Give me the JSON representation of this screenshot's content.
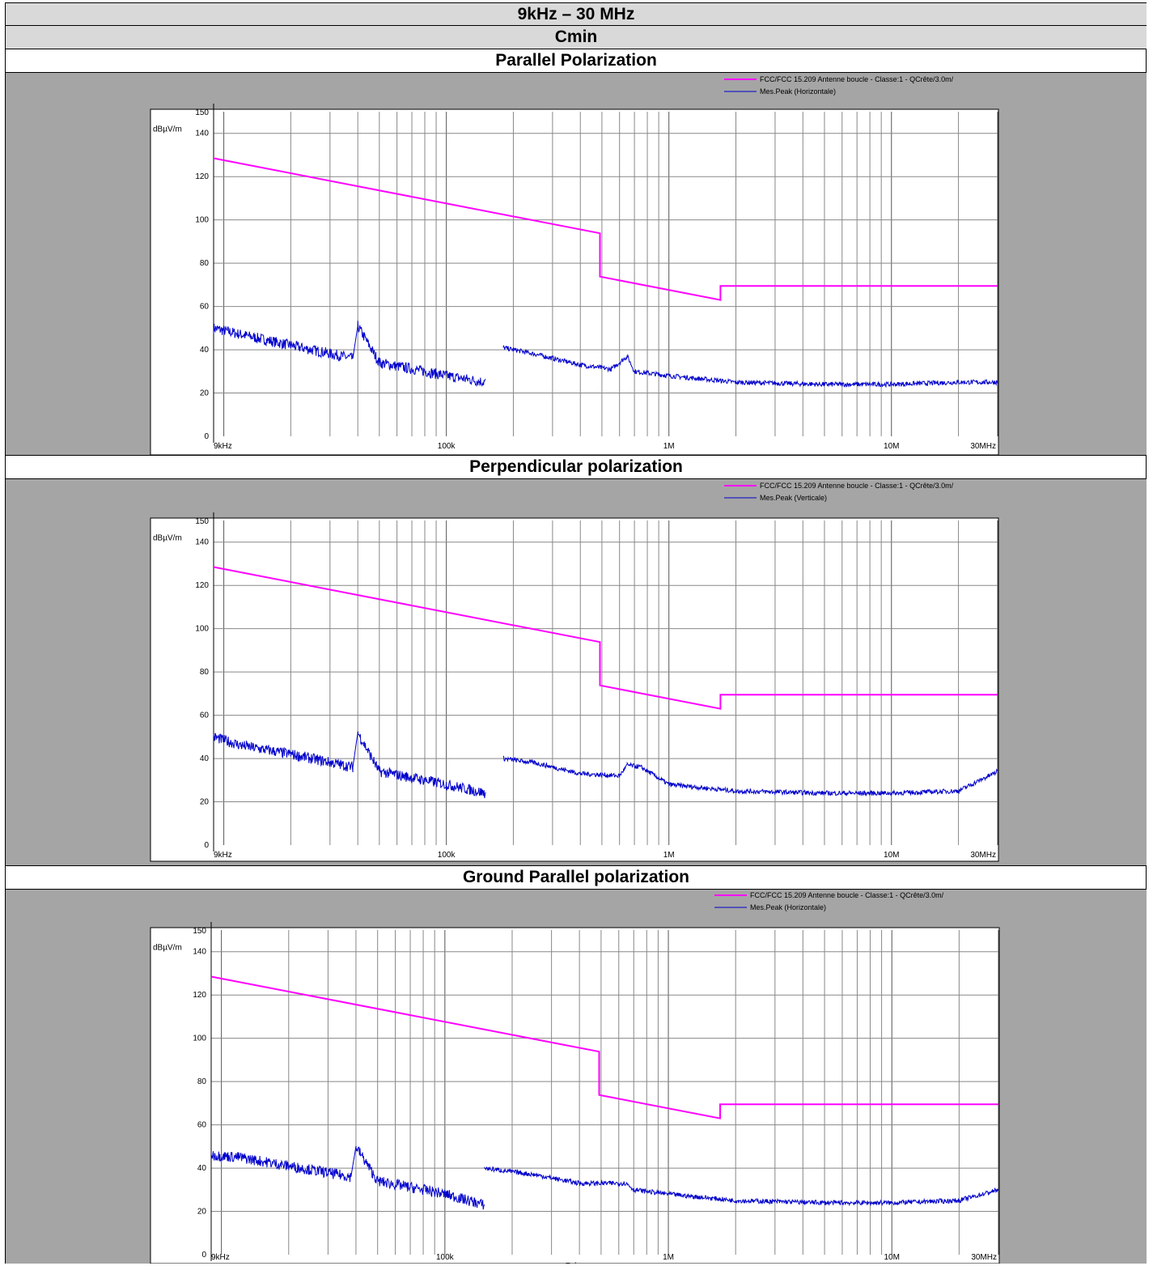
{
  "header": {
    "band": "9kHz – 30 MHz",
    "config": "Cmin"
  },
  "colors": {
    "limit": "#ff00ff",
    "measure": "#0000cc",
    "panel_bg": "#a5a5a5",
    "plot_bg": "#ffffff"
  },
  "axes": {
    "y_unit": "dBµV/m",
    "y_ticks": [
      "0",
      "20",
      "40",
      "60",
      "80",
      "100",
      "120",
      "140",
      "150"
    ],
    "x_ticks": [
      "9kHz",
      "100k",
      "1M",
      "10M",
      "30MHz"
    ],
    "xlabel": "Fréquence"
  },
  "chart_data": [
    {
      "type": "line",
      "title": "Parallel Polarization",
      "x_scale": "log",
      "xlim": [
        9000,
        30000000
      ],
      "ylim": [
        0,
        150
      ],
      "series": [
        {
          "name": "FCC/FCC  15.209 Antenne boucle - Classe:1 - QCrête/3.0m/",
          "points": [
            [
              9000,
              128.5
            ],
            [
              490000,
              93.8
            ],
            [
              490000,
              73.8
            ],
            [
              1705000,
              63.0
            ],
            [
              1705000,
              69.5
            ],
            [
              30000000,
              69.5
            ]
          ]
        },
        {
          "name": "Mes.Peak (Horizontale)",
          "points": [
            [
              9000,
              50
            ],
            [
              12000,
              47
            ],
            [
              20000,
              42
            ],
            [
              38000,
              36
            ],
            [
              40000,
              51
            ],
            [
              50000,
              34
            ],
            [
              80000,
              30
            ],
            [
              100000,
              28
            ],
            [
              150000,
              25
            ],
            [
              150000,
              29
            ],
            [
              180000,
              41
            ],
            [
              250000,
              38
            ],
            [
              400000,
              33
            ],
            [
              550000,
              31
            ],
            [
              650000,
              37
            ],
            [
              700000,
              30
            ],
            [
              1000000,
              28
            ],
            [
              2000000,
              25
            ],
            [
              5000000,
              24
            ],
            [
              10000000,
              24
            ],
            [
              20000000,
              25
            ],
            [
              30000000,
              25
            ]
          ]
        }
      ]
    },
    {
      "type": "line",
      "title": "Perpendicular polarization",
      "x_scale": "log",
      "xlim": [
        9000,
        30000000
      ],
      "ylim": [
        0,
        150
      ],
      "series": [
        {
          "name": "FCC/FCC  15.209 Antenne boucle - Classe:1 - QCrête/3.0m/",
          "points": [
            [
              9000,
              128.5
            ],
            [
              490000,
              93.8
            ],
            [
              490000,
              73.8
            ],
            [
              1705000,
              63.0
            ],
            [
              1705000,
              69.5
            ],
            [
              30000000,
              69.5
            ]
          ]
        },
        {
          "name": "Mes.Peak (Verticale)",
          "points": [
            [
              9000,
              50
            ],
            [
              12000,
              46
            ],
            [
              20000,
              42
            ],
            [
              38000,
              36
            ],
            [
              40000,
              52
            ],
            [
              50000,
              34
            ],
            [
              80000,
              30
            ],
            [
              100000,
              28
            ],
            [
              150000,
              24
            ],
            [
              180000,
              40
            ],
            [
              250000,
              38
            ],
            [
              400000,
              33
            ],
            [
              600000,
              32
            ],
            [
              650000,
              37
            ],
            [
              750000,
              36
            ],
            [
              1000000,
              28
            ],
            [
              2000000,
              25
            ],
            [
              5000000,
              24
            ],
            [
              10000000,
              24
            ],
            [
              20000000,
              25
            ],
            [
              25000000,
              30
            ],
            [
              30000000,
              34
            ]
          ]
        }
      ]
    },
    {
      "type": "line",
      "title": "Ground Parallel polarization",
      "x_scale": "log",
      "xlim": [
        9000,
        30000000
      ],
      "ylim": [
        0,
        150
      ],
      "series": [
        {
          "name": "FCC/FCC  15.209 Antenne boucle - Classe:1 - QCrête/3.0m/",
          "points": [
            [
              9000,
              128.5
            ],
            [
              490000,
              93.8
            ],
            [
              490000,
              73.8
            ],
            [
              1705000,
              63.0
            ],
            [
              1705000,
              69.5
            ],
            [
              30000000,
              69.5
            ]
          ]
        },
        {
          "name": "Mes.Peak (Horizontale)",
          "points": [
            [
              9000,
              46
            ],
            [
              12000,
              45
            ],
            [
              20000,
              41
            ],
            [
              38000,
              36
            ],
            [
              40000,
              50
            ],
            [
              50000,
              34
            ],
            [
              80000,
              30
            ],
            [
              100000,
              28
            ],
            [
              150000,
              23
            ],
            [
              150000,
              40
            ],
            [
              250000,
              37
            ],
            [
              400000,
              33
            ],
            [
              650000,
              33
            ],
            [
              700000,
              30
            ],
            [
              1000000,
              28
            ],
            [
              2000000,
              25
            ],
            [
              5000000,
              24
            ],
            [
              10000000,
              24
            ],
            [
              20000000,
              25
            ],
            [
              30000000,
              30
            ]
          ]
        }
      ]
    }
  ]
}
